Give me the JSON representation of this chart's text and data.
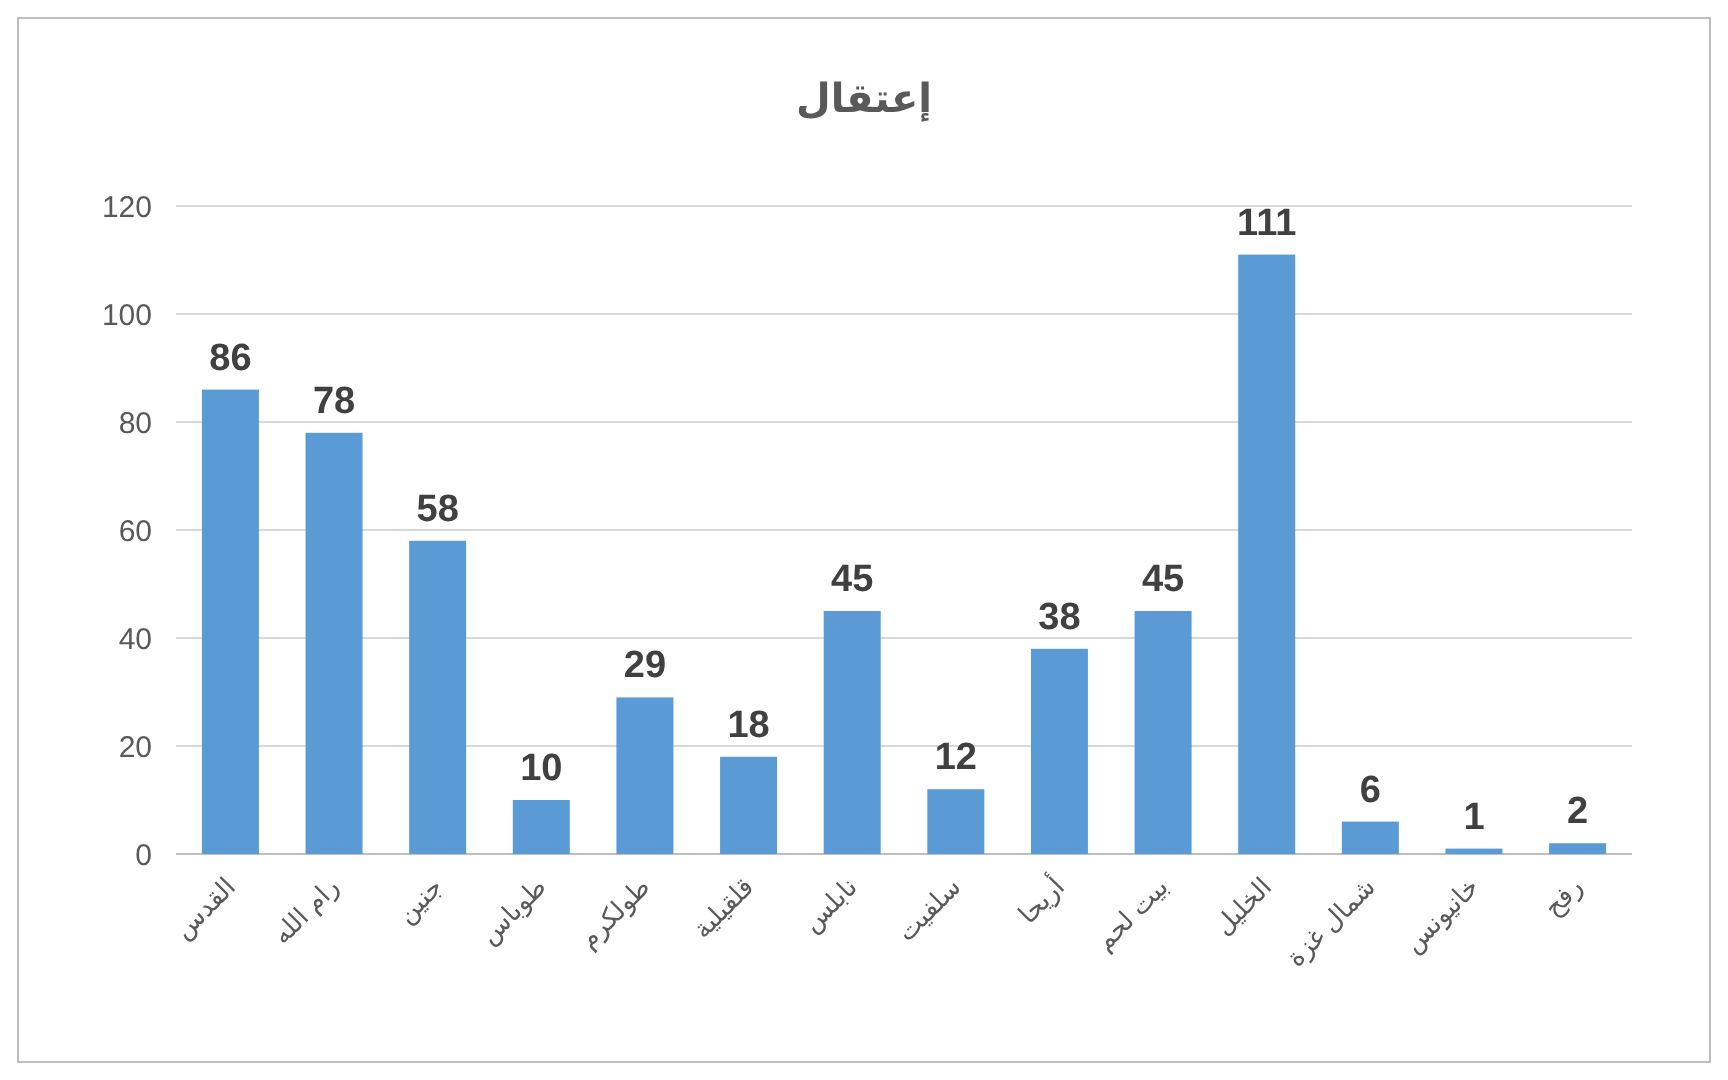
{
  "chart_data": {
    "type": "bar",
    "title": "إعتقال",
    "categories": [
      "القدس",
      "رام الله",
      "جنين",
      "طوباس",
      "طولكرم",
      "قلقيلية",
      "نابلس",
      "سلفيت",
      "أريحا",
      "بيت لحم",
      "الخليل",
      "شمال غزة",
      "خانيونس",
      "رفح"
    ],
    "values": [
      86,
      78,
      58,
      10,
      29,
      18,
      45,
      12,
      38,
      45,
      111,
      6,
      1,
      2
    ],
    "color": "#5b9bd5",
    "ylim": [
      0,
      120
    ],
    "yticks": [
      0,
      20,
      40,
      60,
      80,
      100,
      120
    ],
    "grid": "y",
    "data_labels": true
  }
}
